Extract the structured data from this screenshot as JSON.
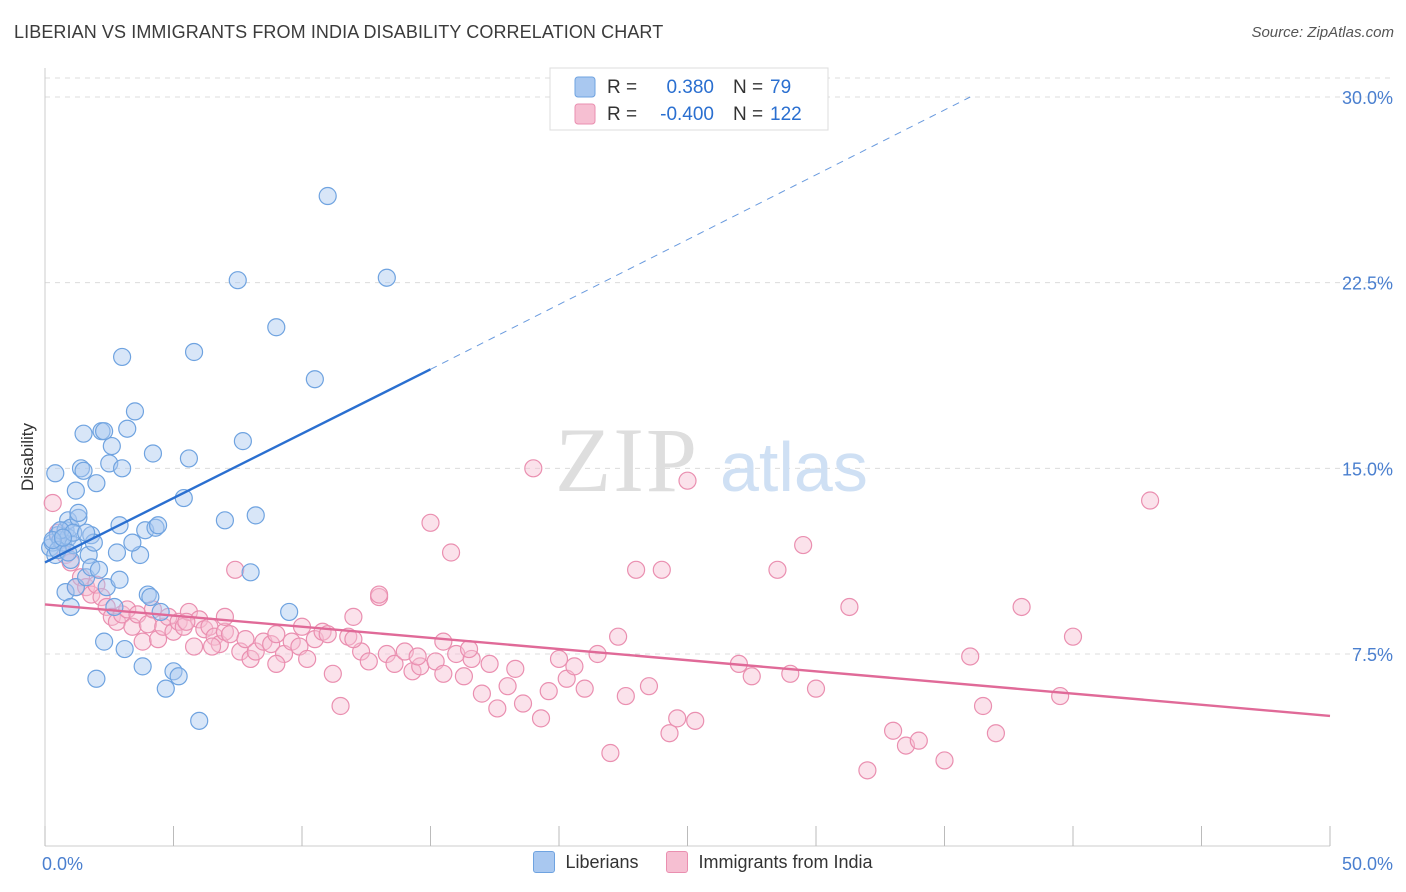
{
  "title": "LIBERIAN VS IMMIGRANTS FROM INDIA DISABILITY CORRELATION CHART",
  "source": "Source: ZipAtlas.com",
  "watermark": {
    "zip": "ZIP",
    "atlas": "atlas"
  },
  "colors": {
    "blue": "#6fa3e0",
    "blue_line": "#2a6fd0",
    "blue_fill": "#a9c8f0",
    "pink": "#ea8fb0",
    "pink_line": "#e06a98",
    "pink_fill": "#f6bfd2",
    "tick_label": "#4a7fcf",
    "grid": "#dcdcdc"
  },
  "legend": {
    "rows": [
      {
        "r_label": "R =",
        "r_value": "0.380",
        "n_label": "N =",
        "n_value": "79"
      },
      {
        "r_label": "R =",
        "r_value": "-0.400",
        "n_label": "N =",
        "n_value": "122"
      }
    ]
  },
  "bottom_legend": {
    "liberians": "Liberians",
    "india": "Immigrants from India"
  },
  "chart_data": {
    "type": "scatter",
    "title": "LIBERIAN VS IMMIGRANTS FROM INDIA DISABILITY CORRELATION CHART",
    "xlabel": "",
    "ylabel": "Disability",
    "xlim": [
      0,
      50
    ],
    "ylim": [
      0,
      30
    ],
    "x_tick_labels": [
      "0.0%",
      "50.0%"
    ],
    "y_ticks": [
      7.5,
      15.0,
      22.5,
      30.0
    ],
    "y_tick_labels": [
      "7.5%",
      "15.0%",
      "22.5%",
      "30.0%"
    ],
    "series": [
      {
        "name": "Liberians",
        "R": 0.38,
        "N": 79,
        "trend": {
          "x0": 0,
          "y0": 11.2,
          "x1": 15,
          "y1": 19.0,
          "dashed_to_x": 36,
          "dashed_to_y": 30.0
        },
        "points": [
          [
            0.2,
            11.8
          ],
          [
            0.3,
            12.0
          ],
          [
            0.4,
            11.5
          ],
          [
            0.5,
            12.3
          ],
          [
            0.6,
            12.1
          ],
          [
            0.4,
            14.8
          ],
          [
            0.7,
            12.0
          ],
          [
            0.8,
            12.5
          ],
          [
            0.9,
            12.2
          ],
          [
            1.0,
            11.3
          ],
          [
            0.8,
            10.0
          ],
          [
            0.9,
            12.9
          ],
          [
            1.0,
            12.6
          ],
          [
            1.1,
            11.9
          ],
          [
            1.2,
            14.1
          ],
          [
            1.3,
            13.0
          ],
          [
            1.0,
            9.4
          ],
          [
            1.2,
            10.2
          ],
          [
            1.4,
            15.0
          ],
          [
            1.5,
            14.9
          ],
          [
            1.6,
            10.6
          ],
          [
            1.7,
            11.5
          ],
          [
            1.8,
            12.3
          ],
          [
            1.8,
            11.0
          ],
          [
            1.9,
            12.0
          ],
          [
            2.0,
            14.4
          ],
          [
            2.1,
            10.9
          ],
          [
            2.2,
            16.5
          ],
          [
            2.3,
            8.0
          ],
          [
            2.4,
            10.2
          ],
          [
            2.5,
            15.2
          ],
          [
            2.6,
            15.9
          ],
          [
            2.7,
            9.4
          ],
          [
            2.8,
            11.6
          ],
          [
            2.9,
            12.7
          ],
          [
            3.0,
            15.0
          ],
          [
            3.1,
            7.7
          ],
          [
            3.2,
            16.6
          ],
          [
            3.5,
            17.3
          ],
          [
            3.7,
            11.5
          ],
          [
            3.8,
            7.0
          ],
          [
            3.9,
            12.5
          ],
          [
            4.0,
            9.9
          ],
          [
            4.1,
            9.8
          ],
          [
            4.2,
            15.6
          ],
          [
            4.3,
            12.6
          ],
          [
            4.5,
            9.2
          ],
          [
            4.7,
            6.1
          ],
          [
            5.0,
            6.8
          ],
          [
            5.2,
            6.6
          ],
          [
            5.4,
            13.8
          ],
          [
            5.6,
            15.4
          ],
          [
            5.8,
            19.7
          ],
          [
            6.0,
            4.8
          ],
          [
            7.0,
            12.9
          ],
          [
            7.5,
            22.6
          ],
          [
            7.7,
            16.1
          ],
          [
            8.0,
            10.8
          ],
          [
            8.2,
            13.1
          ],
          [
            9.0,
            20.7
          ],
          [
            9.5,
            9.2
          ],
          [
            10.5,
            18.6
          ],
          [
            11.0,
            26.0
          ],
          [
            13.3,
            22.7
          ],
          [
            2.0,
            6.5
          ],
          [
            3.0,
            19.5
          ],
          [
            1.5,
            16.4
          ],
          [
            2.3,
            16.5
          ],
          [
            0.6,
            12.5
          ],
          [
            0.5,
            11.7
          ],
          [
            1.1,
            12.4
          ],
          [
            0.9,
            11.6
          ],
          [
            0.3,
            12.1
          ],
          [
            0.7,
            12.2
          ],
          [
            1.6,
            12.4
          ],
          [
            2.9,
            10.5
          ],
          [
            4.4,
            12.7
          ],
          [
            3.4,
            12.0
          ],
          [
            1.3,
            13.2
          ]
        ]
      },
      {
        "name": "Immigrants from India",
        "R": -0.4,
        "N": 122,
        "trend": {
          "x0": 0,
          "y0": 9.5,
          "x1": 50,
          "y1": 5.0
        },
        "points": [
          [
            0.3,
            13.6
          ],
          [
            0.5,
            12.4
          ],
          [
            0.8,
            11.5
          ],
          [
            1.0,
            11.2
          ],
          [
            1.2,
            10.2
          ],
          [
            1.4,
            10.6
          ],
          [
            1.6,
            10.2
          ],
          [
            1.8,
            9.9
          ],
          [
            2.0,
            10.3
          ],
          [
            2.2,
            9.8
          ],
          [
            2.4,
            9.4
          ],
          [
            2.6,
            9.0
          ],
          [
            2.8,
            8.8
          ],
          [
            3.0,
            9.1
          ],
          [
            3.2,
            9.3
          ],
          [
            3.4,
            8.6
          ],
          [
            3.6,
            9.1
          ],
          [
            3.8,
            8.0
          ],
          [
            4.0,
            8.7
          ],
          [
            4.2,
            9.3
          ],
          [
            4.4,
            8.1
          ],
          [
            4.6,
            8.6
          ],
          [
            4.8,
            9.0
          ],
          [
            5.0,
            8.4
          ],
          [
            5.2,
            8.8
          ],
          [
            5.4,
            8.6
          ],
          [
            5.6,
            9.2
          ],
          [
            5.8,
            7.8
          ],
          [
            6.0,
            8.9
          ],
          [
            6.2,
            8.5
          ],
          [
            6.4,
            8.6
          ],
          [
            6.6,
            8.2
          ],
          [
            6.8,
            7.9
          ],
          [
            7.0,
            8.4
          ],
          [
            7.2,
            8.3
          ],
          [
            7.4,
            10.9
          ],
          [
            7.6,
            7.6
          ],
          [
            7.8,
            8.1
          ],
          [
            8.0,
            7.3
          ],
          [
            8.2,
            7.6
          ],
          [
            8.5,
            8.0
          ],
          [
            8.8,
            7.9
          ],
          [
            9.0,
            8.3
          ],
          [
            9.3,
            7.5
          ],
          [
            9.6,
            8.0
          ],
          [
            9.9,
            7.8
          ],
          [
            10.2,
            7.3
          ],
          [
            10.5,
            8.1
          ],
          [
            10.8,
            8.4
          ],
          [
            11.2,
            6.7
          ],
          [
            11.5,
            5.4
          ],
          [
            11.8,
            8.2
          ],
          [
            12.0,
            9.0
          ],
          [
            12.3,
            7.6
          ],
          [
            12.6,
            7.2
          ],
          [
            13.0,
            9.8
          ],
          [
            13.3,
            7.5
          ],
          [
            13.6,
            7.1
          ],
          [
            14.0,
            7.6
          ],
          [
            14.3,
            6.8
          ],
          [
            14.6,
            7.0
          ],
          [
            15.0,
            12.8
          ],
          [
            15.2,
            7.2
          ],
          [
            15.5,
            8.0
          ],
          [
            15.8,
            11.6
          ],
          [
            16.0,
            7.5
          ],
          [
            16.3,
            6.6
          ],
          [
            16.6,
            7.3
          ],
          [
            17.0,
            5.9
          ],
          [
            17.3,
            7.1
          ],
          [
            17.6,
            5.3
          ],
          [
            18.0,
            6.2
          ],
          [
            18.3,
            6.9
          ],
          [
            18.6,
            5.5
          ],
          [
            19.0,
            15.0
          ],
          [
            19.3,
            4.9
          ],
          [
            19.6,
            6.0
          ],
          [
            20.0,
            7.3
          ],
          [
            20.3,
            6.5
          ],
          [
            20.6,
            7.0
          ],
          [
            21.0,
            6.1
          ],
          [
            21.5,
            7.5
          ],
          [
            22.0,
            3.5
          ],
          [
            22.3,
            8.2
          ],
          [
            22.6,
            5.8
          ],
          [
            23.0,
            10.9
          ],
          [
            23.5,
            6.2
          ],
          [
            24.0,
            10.9
          ],
          [
            24.3,
            4.3
          ],
          [
            24.6,
            4.9
          ],
          [
            25.0,
            14.5
          ],
          [
            25.3,
            4.8
          ],
          [
            27.0,
            7.1
          ],
          [
            27.5,
            6.6
          ],
          [
            28.5,
            10.9
          ],
          [
            29.0,
            6.7
          ],
          [
            29.5,
            11.9
          ],
          [
            30.0,
            6.1
          ],
          [
            31.3,
            9.4
          ],
          [
            32.0,
            2.8
          ],
          [
            33.0,
            4.4
          ],
          [
            33.5,
            3.8
          ],
          [
            34.0,
            4.0
          ],
          [
            35.0,
            3.2
          ],
          [
            36.0,
            7.4
          ],
          [
            36.5,
            5.4
          ],
          [
            37.0,
            4.3
          ],
          [
            38.0,
            9.4
          ],
          [
            39.5,
            5.8
          ],
          [
            40.0,
            8.2
          ],
          [
            43.0,
            13.7
          ],
          [
            13.0,
            9.9
          ],
          [
            7.0,
            9.0
          ],
          [
            12.0,
            8.1
          ],
          [
            11.0,
            8.3
          ],
          [
            10.0,
            8.6
          ],
          [
            6.5,
            7.8
          ],
          [
            5.5,
            8.8
          ],
          [
            9.0,
            7.1
          ],
          [
            15.5,
            6.7
          ],
          [
            14.5,
            7.4
          ],
          [
            16.5,
            7.7
          ]
        ]
      }
    ]
  }
}
